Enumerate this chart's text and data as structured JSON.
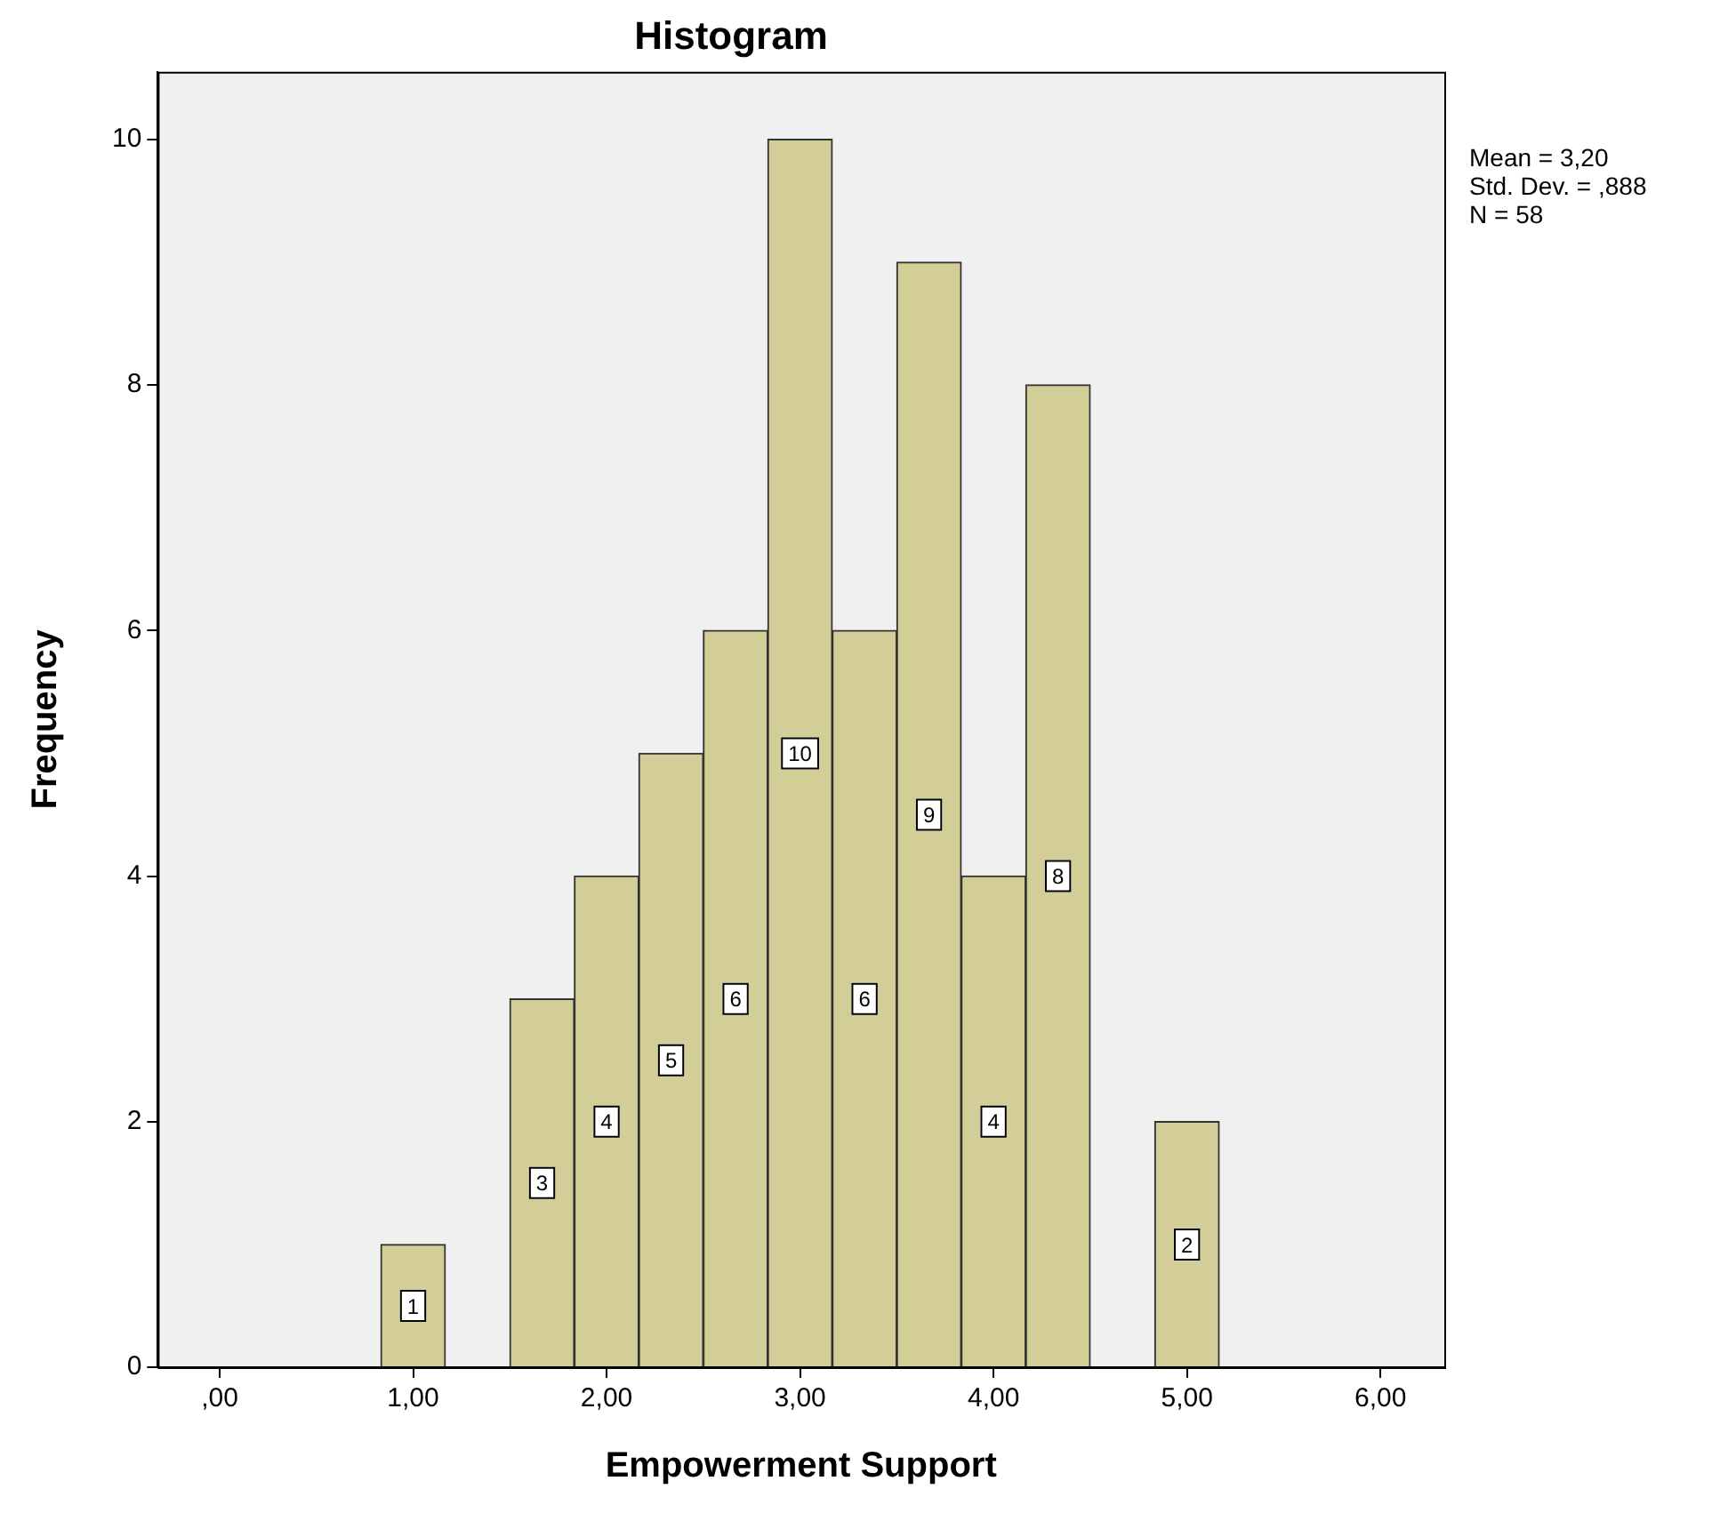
{
  "chart_data": {
    "type": "histogram",
    "title": "Histogram",
    "xlabel": "Empowerment Support",
    "ylabel": "Frequency",
    "bins": [
      0.8333,
      1.1667,
      1.5,
      1.8333,
      2.1667,
      2.5,
      2.8333,
      3.1667,
      3.5,
      3.8333,
      4.1667,
      4.5,
      4.8333,
      5.1667
    ],
    "values": [
      1,
      0,
      3,
      4,
      5,
      6,
      10,
      6,
      9,
      4,
      8,
      0,
      2
    ],
    "value_labels": [
      "1",
      null,
      "3",
      "4",
      "5",
      "6",
      "10",
      "6",
      "9",
      "4",
      "8",
      null,
      "2"
    ],
    "color": "#d3ce97",
    "xlim": [
      -0.32,
      6.33
    ],
    "xticks": [
      {
        "value": 0,
        "label": ",00"
      },
      {
        "value": 1,
        "label": "1,00"
      },
      {
        "value": 2,
        "label": "2,00"
      },
      {
        "value": 3,
        "label": "3,00"
      },
      {
        "value": 4,
        "label": "4,00"
      },
      {
        "value": 5,
        "label": "5,00"
      },
      {
        "value": 6,
        "label": "6,00"
      }
    ],
    "ylim": [
      0,
      10.55
    ],
    "yticks": [
      0,
      2,
      4,
      6,
      8,
      10
    ],
    "grid": false,
    "legend": false,
    "annotations": [
      "Mean = 3,20",
      "Std. Dev. = ,888",
      "N = 58"
    ]
  }
}
